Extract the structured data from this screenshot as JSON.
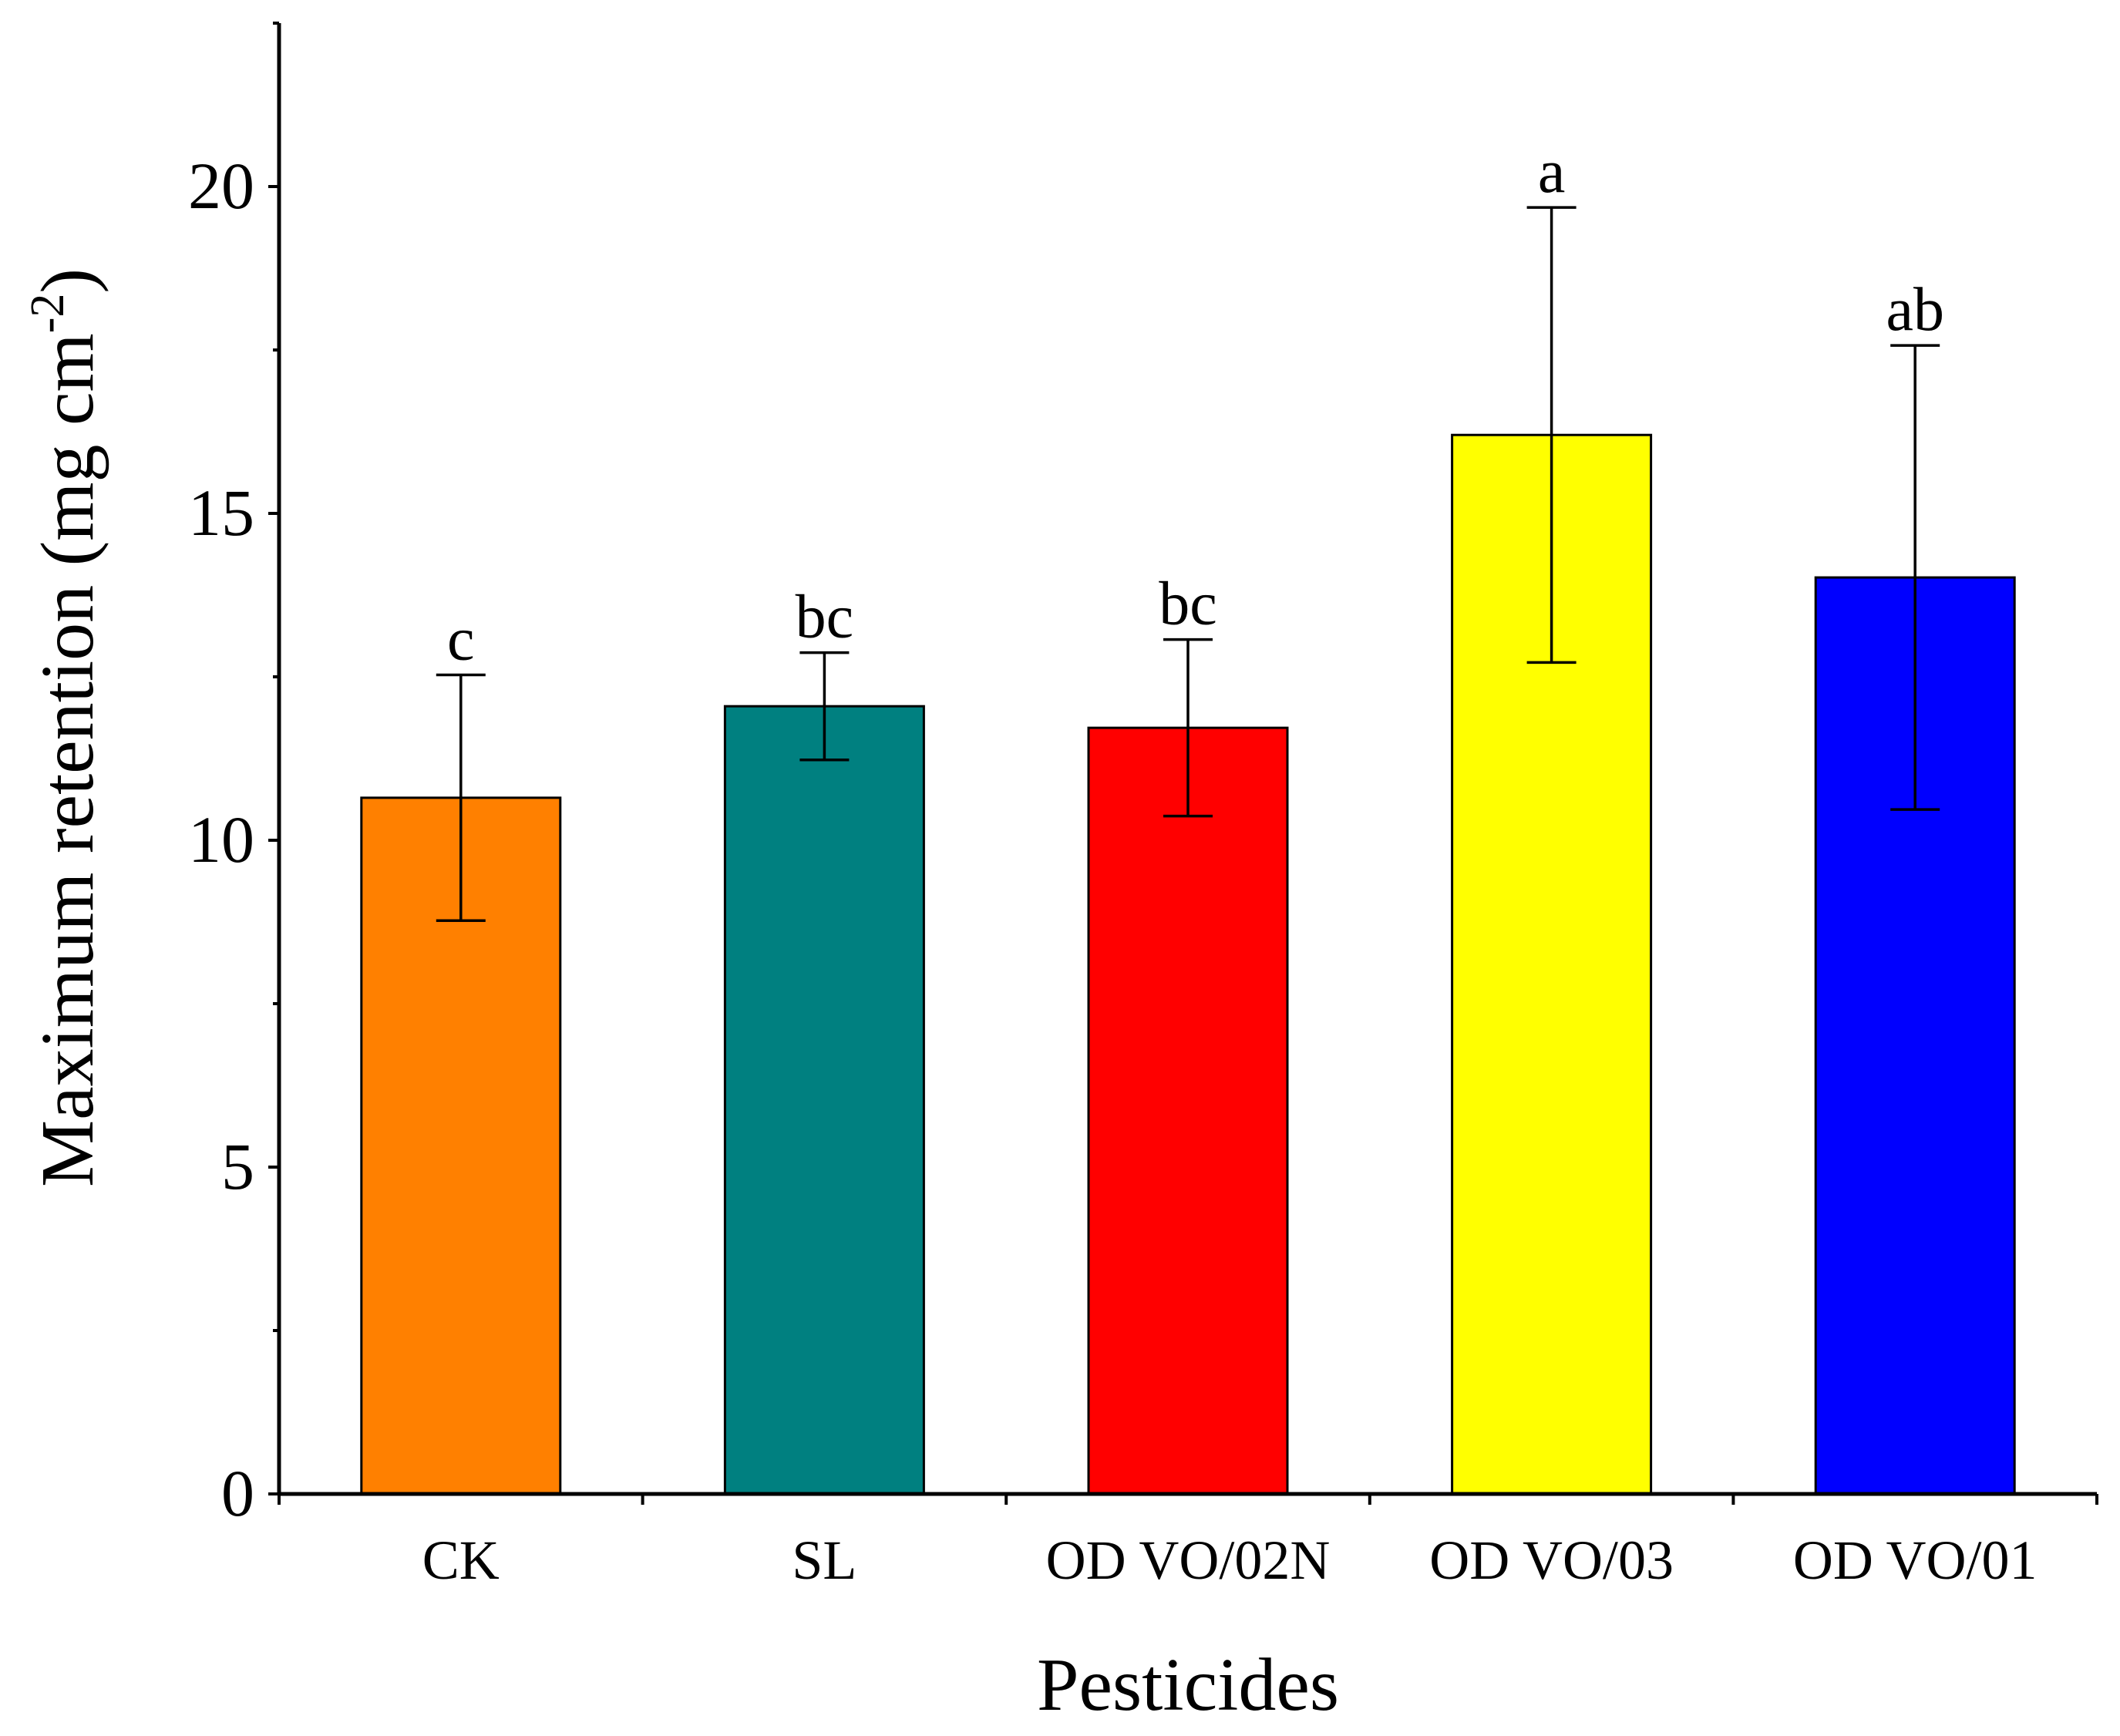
{
  "chart_data": {
    "type": "bar",
    "title": "",
    "xlabel": "Pesticides",
    "ylabel_main": "Maximum retention (mg cm",
    "ylabel_sup": "-2",
    "ylabel_close": ")",
    "ylim": [
      0,
      22.5
    ],
    "yticks_major": [
      0,
      5,
      10,
      15,
      20
    ],
    "yticks_minor": [
      2.5,
      7.5,
      12.5,
      17.5,
      22.5
    ],
    "grid": false,
    "categories": [
      "CK",
      "SL",
      "OD VO/02N",
      "OD VO/03",
      "OD VO/01"
    ],
    "values": [
      10.65,
      12.05,
      11.72,
      16.2,
      14.02
    ],
    "errors": [
      1.88,
      0.82,
      1.35,
      3.48,
      3.55
    ],
    "significance": [
      "c",
      "bc",
      "bc",
      "a",
      "ab"
    ],
    "colors": [
      "#FF8000",
      "#008080",
      "#FF0000",
      "#FFFF00",
      "#0000FF"
    ]
  }
}
